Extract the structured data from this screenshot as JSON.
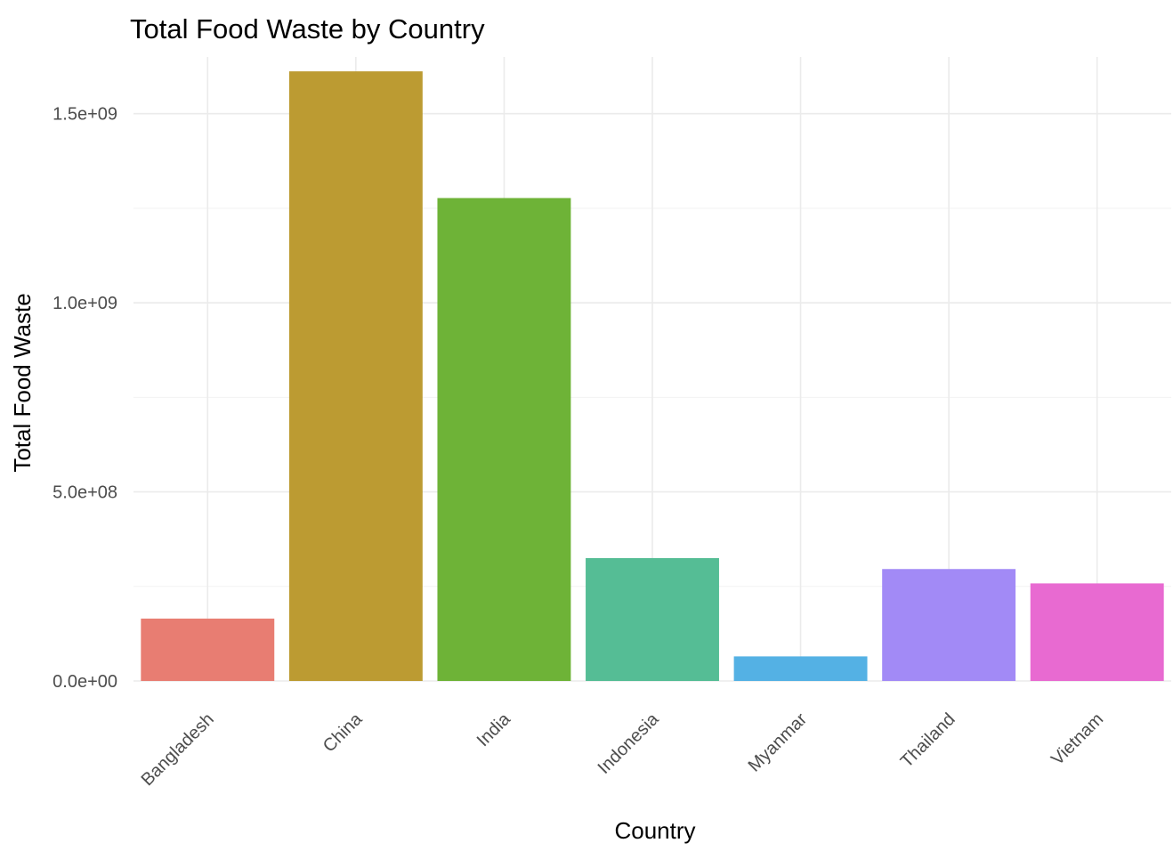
{
  "chart_data": {
    "type": "bar",
    "title": "Total Food Waste by Country",
    "xlabel": "Country",
    "ylabel": "Total Food Waste",
    "categories": [
      "Bangladesh",
      "China",
      "India",
      "Indonesia",
      "Myanmar",
      "Thailand",
      "Vietnam"
    ],
    "values": [
      165000000,
      1612000000,
      1277000000,
      325000000,
      65000000,
      296000000,
      258000000
    ],
    "colors": [
      "#E87D72",
      "#BC9B32",
      "#6EB337",
      "#55BD95",
      "#54B1E4",
      "#A28AF6",
      "#E86AD1"
    ],
    "ylim": [
      0,
      1650000000
    ],
    "yticks": [
      0,
      500000000,
      1000000000,
      1500000000
    ],
    "ytick_labels": [
      "0.0e+00",
      "5.0e+08",
      "1.0e+09",
      "1.5e+09"
    ],
    "grid": true,
    "legend": "none"
  }
}
